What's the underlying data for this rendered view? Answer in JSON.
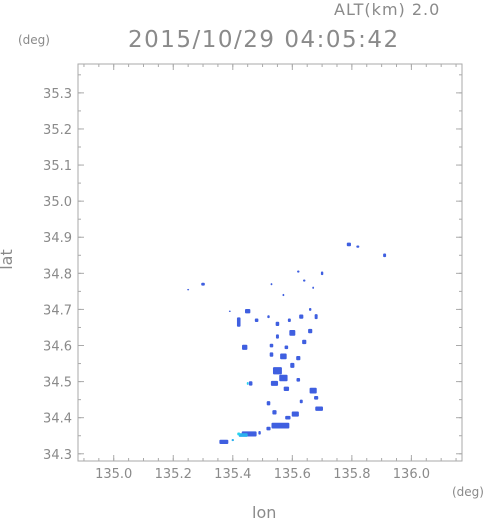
{
  "header": {
    "altitude_label": "ALT(km) 2.0",
    "timestamp": "2015/10/29 04:05:42"
  },
  "chart_data": {
    "type": "scatter",
    "title": "2015/10/29 04:05:42",
    "xlabel": "lon",
    "ylabel": "lat",
    "x_unit": "(deg)",
    "y_unit": "(deg)",
    "xlim": [
      134.88,
      136.17
    ],
    "ylim": [
      34.28,
      35.38
    ],
    "x_ticks": [
      135.0,
      135.2,
      135.4,
      135.6,
      135.8,
      136.0
    ],
    "x_tick_labels": [
      "135.0",
      "135.2",
      "135.4",
      "135.6",
      "135.8",
      "136.0"
    ],
    "y_ticks": [
      34.3,
      34.4,
      34.5,
      34.6,
      34.7,
      34.8,
      34.9,
      35.0,
      35.1,
      35.2,
      35.3
    ],
    "y_tick_labels": [
      "34.3",
      "34.4",
      "34.5",
      "34.6",
      "34.7",
      "34.8",
      "34.9",
      "35.0",
      "35.1",
      "35.2",
      "35.3"
    ],
    "grid": false,
    "colors": {
      "frame": "#aaaaaa",
      "echo_main": "#3f5fe0",
      "echo_light": "#2bb0ee",
      "echo_cyan": "#27d3ee"
    },
    "echoes": [
      {
        "lon": 135.25,
        "lat": 34.755,
        "w": 0.006,
        "h": 0.004,
        "c": "main"
      },
      {
        "lon": 135.3,
        "lat": 34.77,
        "w": 0.012,
        "h": 0.008,
        "c": "main"
      },
      {
        "lon": 135.39,
        "lat": 34.695,
        "w": 0.006,
        "h": 0.004,
        "c": "main"
      },
      {
        "lon": 135.53,
        "lat": 34.77,
        "w": 0.006,
        "h": 0.006,
        "c": "main"
      },
      {
        "lon": 135.57,
        "lat": 34.74,
        "w": 0.006,
        "h": 0.006,
        "c": "main"
      },
      {
        "lon": 135.62,
        "lat": 34.805,
        "w": 0.008,
        "h": 0.006,
        "c": "main"
      },
      {
        "lon": 135.64,
        "lat": 34.78,
        "w": 0.008,
        "h": 0.006,
        "c": "main"
      },
      {
        "lon": 135.7,
        "lat": 34.8,
        "w": 0.008,
        "h": 0.01,
        "c": "main"
      },
      {
        "lon": 135.67,
        "lat": 34.76,
        "w": 0.006,
        "h": 0.006,
        "c": "main"
      },
      {
        "lon": 135.79,
        "lat": 34.88,
        "w": 0.014,
        "h": 0.01,
        "c": "main"
      },
      {
        "lon": 135.82,
        "lat": 34.874,
        "w": 0.01,
        "h": 0.006,
        "c": "main"
      },
      {
        "lon": 135.91,
        "lat": 34.85,
        "w": 0.01,
        "h": 0.01,
        "c": "main"
      },
      {
        "lon": 135.45,
        "lat": 34.695,
        "w": 0.018,
        "h": 0.012,
        "c": "main"
      },
      {
        "lon": 135.42,
        "lat": 34.665,
        "w": 0.012,
        "h": 0.026,
        "c": "main"
      },
      {
        "lon": 135.48,
        "lat": 34.67,
        "w": 0.012,
        "h": 0.01,
        "c": "main"
      },
      {
        "lon": 135.52,
        "lat": 34.68,
        "w": 0.008,
        "h": 0.008,
        "c": "main"
      },
      {
        "lon": 135.55,
        "lat": 34.66,
        "w": 0.012,
        "h": 0.012,
        "c": "main"
      },
      {
        "lon": 135.59,
        "lat": 34.67,
        "w": 0.01,
        "h": 0.01,
        "c": "main"
      },
      {
        "lon": 135.63,
        "lat": 34.68,
        "w": 0.014,
        "h": 0.012,
        "c": "main"
      },
      {
        "lon": 135.66,
        "lat": 34.7,
        "w": 0.008,
        "h": 0.008,
        "c": "main"
      },
      {
        "lon": 135.68,
        "lat": 34.68,
        "w": 0.01,
        "h": 0.014,
        "c": "main"
      },
      {
        "lon": 135.6,
        "lat": 34.635,
        "w": 0.02,
        "h": 0.016,
        "c": "main"
      },
      {
        "lon": 135.66,
        "lat": 34.64,
        "w": 0.014,
        "h": 0.012,
        "c": "main"
      },
      {
        "lon": 135.64,
        "lat": 34.61,
        "w": 0.014,
        "h": 0.012,
        "c": "main"
      },
      {
        "lon": 135.55,
        "lat": 34.625,
        "w": 0.01,
        "h": 0.012,
        "c": "main"
      },
      {
        "lon": 135.53,
        "lat": 34.6,
        "w": 0.012,
        "h": 0.01,
        "c": "main"
      },
      {
        "lon": 135.58,
        "lat": 34.595,
        "w": 0.012,
        "h": 0.01,
        "c": "main"
      },
      {
        "lon": 135.44,
        "lat": 34.595,
        "w": 0.018,
        "h": 0.014,
        "c": "main"
      },
      {
        "lon": 135.57,
        "lat": 34.57,
        "w": 0.022,
        "h": 0.016,
        "c": "main"
      },
      {
        "lon": 135.53,
        "lat": 34.575,
        "w": 0.012,
        "h": 0.012,
        "c": "main"
      },
      {
        "lon": 135.62,
        "lat": 34.565,
        "w": 0.014,
        "h": 0.012,
        "c": "main"
      },
      {
        "lon": 135.6,
        "lat": 34.545,
        "w": 0.014,
        "h": 0.014,
        "c": "main"
      },
      {
        "lon": 135.55,
        "lat": 34.53,
        "w": 0.03,
        "h": 0.02,
        "c": "main"
      },
      {
        "lon": 135.57,
        "lat": 34.51,
        "w": 0.028,
        "h": 0.018,
        "c": "main"
      },
      {
        "lon": 135.54,
        "lat": 34.495,
        "w": 0.024,
        "h": 0.014,
        "c": "main"
      },
      {
        "lon": 135.58,
        "lat": 34.48,
        "w": 0.018,
        "h": 0.012,
        "c": "main"
      },
      {
        "lon": 135.62,
        "lat": 34.505,
        "w": 0.012,
        "h": 0.01,
        "c": "main"
      },
      {
        "lon": 135.46,
        "lat": 34.495,
        "w": 0.012,
        "h": 0.012,
        "c": "main"
      },
      {
        "lon": 135.45,
        "lat": 34.495,
        "w": 0.006,
        "h": 0.008,
        "c": "cyan"
      },
      {
        "lon": 135.67,
        "lat": 34.475,
        "w": 0.024,
        "h": 0.016,
        "c": "main"
      },
      {
        "lon": 135.68,
        "lat": 34.455,
        "w": 0.014,
        "h": 0.01,
        "c": "main"
      },
      {
        "lon": 135.63,
        "lat": 34.445,
        "w": 0.01,
        "h": 0.01,
        "c": "main"
      },
      {
        "lon": 135.69,
        "lat": 34.425,
        "w": 0.026,
        "h": 0.012,
        "c": "main"
      },
      {
        "lon": 135.52,
        "lat": 34.44,
        "w": 0.012,
        "h": 0.012,
        "c": "main"
      },
      {
        "lon": 135.54,
        "lat": 34.415,
        "w": 0.014,
        "h": 0.012,
        "c": "main"
      },
      {
        "lon": 135.61,
        "lat": 34.41,
        "w": 0.024,
        "h": 0.014,
        "c": "main"
      },
      {
        "lon": 135.585,
        "lat": 34.4,
        "w": 0.018,
        "h": 0.01,
        "c": "main"
      },
      {
        "lon": 135.56,
        "lat": 34.378,
        "w": 0.06,
        "h": 0.016,
        "c": "main"
      },
      {
        "lon": 135.52,
        "lat": 34.37,
        "w": 0.014,
        "h": 0.01,
        "c": "main"
      },
      {
        "lon": 135.455,
        "lat": 34.355,
        "w": 0.05,
        "h": 0.014,
        "c": "main"
      },
      {
        "lon": 135.435,
        "lat": 34.352,
        "w": 0.03,
        "h": 0.01,
        "c": "light"
      },
      {
        "lon": 135.42,
        "lat": 34.355,
        "w": 0.01,
        "h": 0.008,
        "c": "cyan"
      },
      {
        "lon": 135.49,
        "lat": 34.358,
        "w": 0.008,
        "h": 0.01,
        "c": "main"
      },
      {
        "lon": 135.37,
        "lat": 34.333,
        "w": 0.03,
        "h": 0.012,
        "c": "main"
      },
      {
        "lon": 135.4,
        "lat": 34.338,
        "w": 0.008,
        "h": 0.006,
        "c": "light"
      }
    ]
  }
}
